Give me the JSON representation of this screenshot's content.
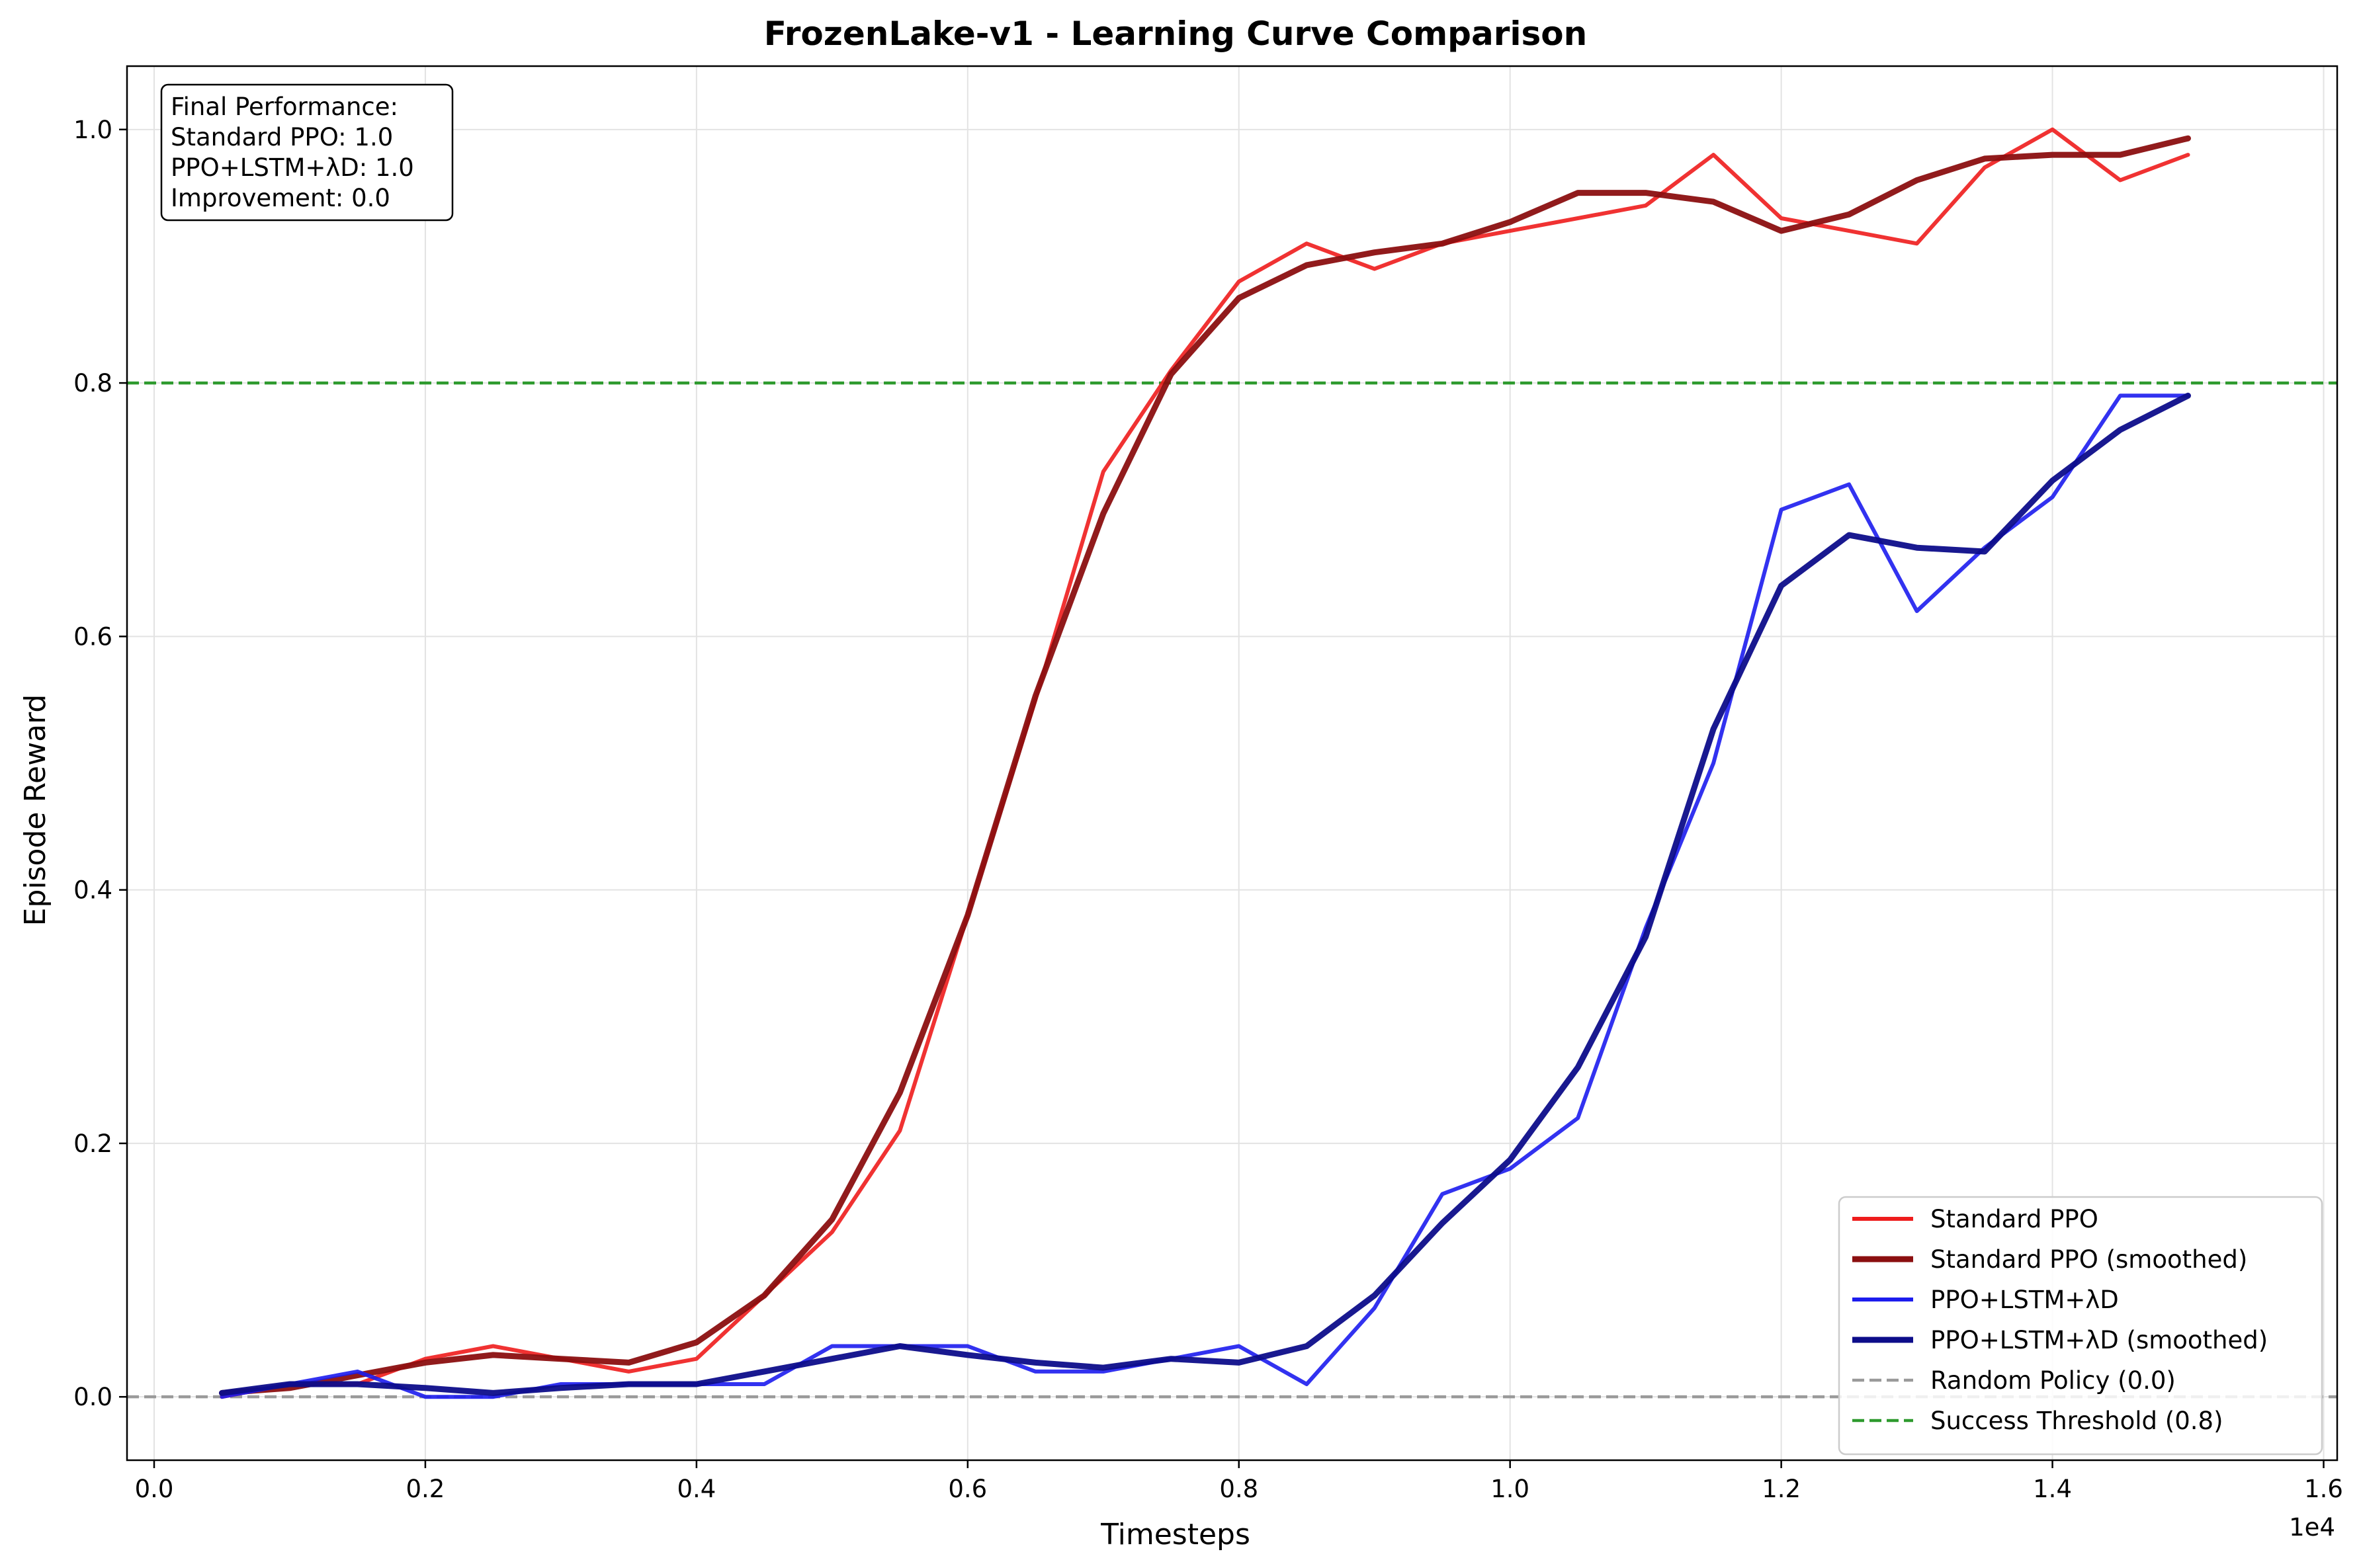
{
  "chart_data": {
    "type": "line",
    "title": "FrozenLake-v1 - Learning Curve Comparison",
    "xlabel": "Timesteps",
    "ylabel": "Episode Reward",
    "x_offset_label": "1e4",
    "xlim": [
      -0.02,
      1.61
    ],
    "ylim": [
      -0.05,
      1.05
    ],
    "x_ticks": [
      0.0,
      0.2,
      0.4,
      0.6,
      0.8,
      1.0,
      1.2,
      1.4,
      1.6
    ],
    "x_tick_labels": [
      "0.0",
      "0.2",
      "0.4",
      "0.6",
      "0.8",
      "1.0",
      "1.2",
      "1.4",
      "1.6"
    ],
    "y_ticks": [
      0.0,
      0.2,
      0.4,
      0.6,
      0.8,
      1.0
    ],
    "y_tick_labels": [
      "0.0",
      "0.2",
      "0.4",
      "0.6",
      "0.8",
      "1.0"
    ],
    "grid": true,
    "legend_position": "lower-right",
    "x": [
      0.05,
      0.1,
      0.15,
      0.2,
      0.25,
      0.3,
      0.35,
      0.4,
      0.45,
      0.5,
      0.55,
      0.6,
      0.65,
      0.7,
      0.75,
      0.8,
      0.85,
      0.9,
      0.95,
      1.0,
      1.05,
      1.1,
      1.15,
      1.2,
      1.25,
      1.3,
      1.35,
      1.4,
      1.45,
      1.5
    ],
    "series": [
      {
        "name": "Standard PPO",
        "color": "#ee1c1c",
        "width": 6,
        "style": "solid",
        "opacity": 0.9,
        "values": [
          0.0,
          0.01,
          0.01,
          0.03,
          0.04,
          0.03,
          0.02,
          0.03,
          0.08,
          0.13,
          0.21,
          0.38,
          0.55,
          0.73,
          0.81,
          0.88,
          0.91,
          0.89,
          0.91,
          0.92,
          0.93,
          0.94,
          0.98,
          0.93,
          0.92,
          0.91,
          0.97,
          1.0,
          0.96,
          0.98
        ]
      },
      {
        "name": "Standard PPO (smoothed)",
        "color": "#8b0f10",
        "width": 9,
        "style": "solid",
        "opacity": 0.95,
        "values": [
          0.003,
          0.007,
          0.017,
          0.027,
          0.033,
          0.03,
          0.027,
          0.043,
          0.08,
          0.14,
          0.24,
          0.38,
          0.553,
          0.697,
          0.807,
          0.867,
          0.893,
          0.903,
          0.91,
          0.927,
          0.95,
          0.95,
          0.943,
          0.92,
          0.933,
          0.96,
          0.977,
          0.98,
          0.98,
          0.993
        ]
      },
      {
        "name": "PPO+LSTM+λD",
        "color": "#1c1cee",
        "width": 6,
        "style": "solid",
        "opacity": 0.9,
        "values": [
          0.0,
          0.01,
          0.02,
          0.0,
          0.0,
          0.01,
          0.01,
          0.01,
          0.01,
          0.04,
          0.04,
          0.04,
          0.02,
          0.02,
          0.03,
          0.04,
          0.01,
          0.07,
          0.16,
          0.18,
          0.22,
          0.37,
          0.5,
          0.7,
          0.72,
          0.62,
          0.67,
          0.71,
          0.79,
          0.79
        ]
      },
      {
        "name": "PPO+LSTM+λD (smoothed)",
        "color": "#0d0d8a",
        "width": 9,
        "style": "solid",
        "opacity": 0.95,
        "values": [
          0.003,
          0.01,
          0.01,
          0.007,
          0.003,
          0.007,
          0.01,
          0.01,
          0.02,
          0.03,
          0.04,
          0.033,
          0.027,
          0.023,
          0.03,
          0.027,
          0.04,
          0.08,
          0.137,
          0.187,
          0.26,
          0.363,
          0.527,
          0.64,
          0.68,
          0.67,
          0.667,
          0.723,
          0.763,
          0.79
        ]
      }
    ],
    "reference_lines": [
      {
        "name": "Random Policy (0.0)",
        "y": 0.0,
        "color": "#9a9a9a",
        "style": "dashed"
      },
      {
        "name": "Success Threshold (0.8)",
        "y": 0.8,
        "color": "#2e9a2e",
        "style": "dashed"
      }
    ],
    "annotation": {
      "lines": [
        "Final Performance:",
        "Standard PPO: 1.0",
        "PPO+LSTM+λD: 1.0",
        "Improvement: 0.0"
      ],
      "position": "top-left"
    }
  }
}
